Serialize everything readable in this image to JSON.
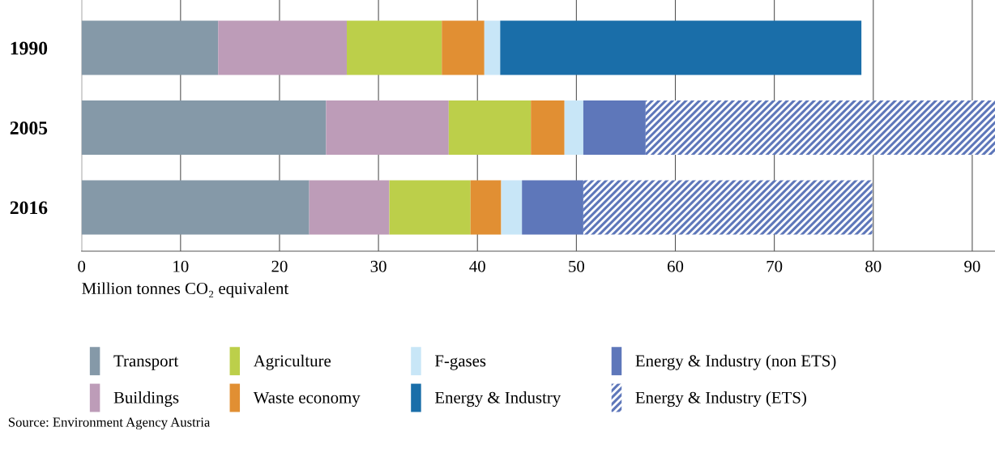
{
  "chart_data": {
    "type": "bar",
    "orientation": "horizontal",
    "stacked": true,
    "categories": [
      "1990",
      "2005",
      "2016"
    ],
    "series": [
      {
        "name": "Transport",
        "color": "#8599a8",
        "values": [
          13.8,
          24.7,
          23.0
        ]
      },
      {
        "name": "Buildings",
        "color": "#bd9cb8",
        "values": [
          13.0,
          12.4,
          8.1
        ]
      },
      {
        "name": "Agriculture",
        "color": "#bccf4a",
        "values": [
          9.6,
          8.3,
          8.2
        ]
      },
      {
        "name": "Waste economy",
        "color": "#e18f33",
        "values": [
          4.3,
          3.4,
          3.1
        ]
      },
      {
        "name": "F-gases",
        "color": "#c8e6f7",
        "values": [
          1.6,
          1.9,
          2.1
        ]
      },
      {
        "name": "Energy & Industry",
        "color": "#1a6ea9",
        "values": [
          36.5,
          null,
          null
        ]
      },
      {
        "name": "Energy & Industry (non ETS)",
        "color": "#5e77ba",
        "values": [
          null,
          6.3,
          6.2
        ]
      },
      {
        "name": "Energy & Industry (ETS)",
        "color": "#5e77ba",
        "values": [
          null,
          35.3,
          29.2
        ]
      }
    ],
    "xlim": [
      0,
      92.3
    ],
    "xticks": [
      0,
      10,
      20,
      30,
      40,
      50,
      60,
      70,
      80,
      90
    ],
    "xlabel": "Million tonnes CO₂ equivalent",
    "grid": "x",
    "legend": "bottom",
    "annotations": [
      "Source: Environment Agency Austria"
    ]
  }
}
